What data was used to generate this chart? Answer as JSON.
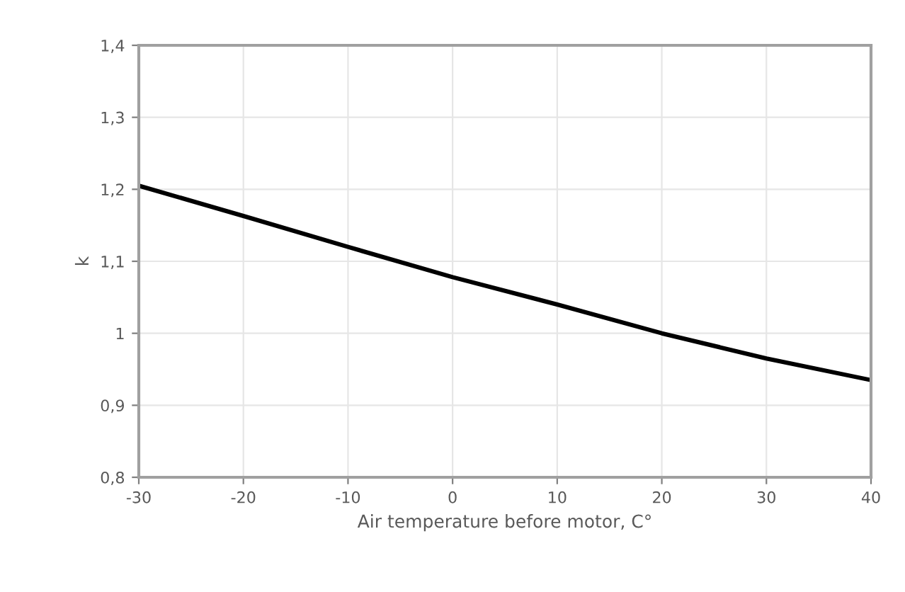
{
  "chart_data": {
    "type": "line",
    "xlabel": "Air temperature before motor, C°",
    "ylabel": "k",
    "x": [
      -30,
      -20,
      -10,
      0,
      10,
      20,
      30,
      40
    ],
    "series": [
      {
        "color": "#000000",
        "values": [
          1.205,
          1.163,
          1.12,
          1.078,
          1.04,
          1.0,
          0.965,
          0.935
        ]
      }
    ],
    "xlim": [
      -30,
      40
    ],
    "xticks": [
      -30,
      -20,
      -10,
      0,
      10,
      20,
      30,
      40
    ],
    "ylim": [
      0.8,
      1.4
    ],
    "yticks": [
      {
        "value": 0.8,
        "label": "0,8"
      },
      {
        "value": 0.9,
        "label": "0,9"
      },
      {
        "value": 1,
        "label": "1"
      },
      {
        "value": 1.1,
        "label": "1,1"
      },
      {
        "value": 1.2,
        "label": "1,2"
      },
      {
        "value": 1.3,
        "label": "1,3"
      },
      {
        "value": 1.4,
        "label": "1,4"
      }
    ],
    "grid": true,
    "marker": "none",
    "line_style": "solid"
  }
}
